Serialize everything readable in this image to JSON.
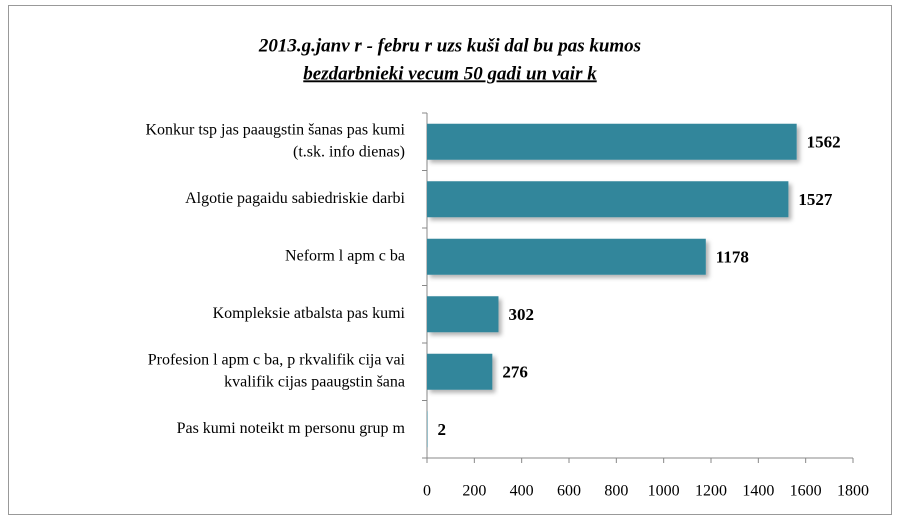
{
  "chart_data": {
    "type": "barh",
    "title": [
      "2013.g.janv  r  - febru  r  uzs  kuši dal bu pas  kumos",
      "bezdarbnieki vecum   50 gadi un vair  k"
    ],
    "categories": [
      [
        "Konkur tsp jas paaugstin šanas pas kumi",
        "(t.sk. info dienas)"
      ],
      [
        "Algotie pagaidu sabiedriskie darbi"
      ],
      [
        "Neform l  apm c ba"
      ],
      [
        "Kompleksie atbalsta pas kumi"
      ],
      [
        "Profesion l  apm c ba, p rkvalifik cija vai",
        "kvalifik cijas paaugstin šana"
      ],
      [
        "Pas kumi noteikt m personu grup m"
      ]
    ],
    "values": [
      1562,
      1527,
      1178,
      302,
      276,
      2
    ],
    "color": "#31869b",
    "xlim": [
      0,
      1800
    ],
    "xticks": [
      0,
      200,
      400,
      600,
      800,
      1000,
      1200,
      1400,
      1600,
      1800
    ]
  }
}
